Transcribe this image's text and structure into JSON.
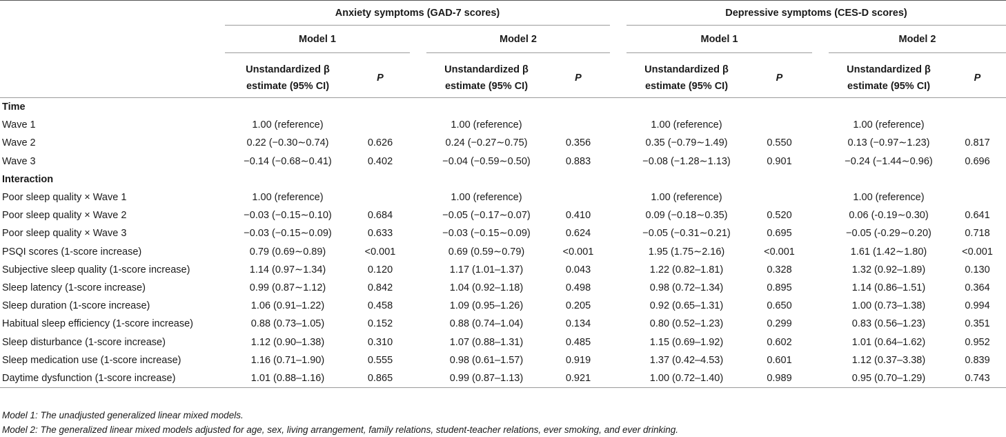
{
  "groups": [
    {
      "label": "Anxiety symptoms (GAD-7 scores)"
    },
    {
      "label": "Depressive symptoms (CES-D scores)"
    }
  ],
  "models": [
    "Model 1",
    "Model 2",
    "Model 1",
    "Model 2"
  ],
  "col_header": {
    "estimate_line1": "Unstandardized β",
    "estimate_line2": "estimate (95% CI)",
    "p": "P"
  },
  "sections": [
    {
      "title": "Time",
      "rows": [
        {
          "label": "Wave 1",
          "cells": [
            "1.00 (reference)",
            "",
            "1.00 (reference)",
            "",
            "1.00 (reference)",
            "",
            "1.00 (reference)",
            ""
          ]
        },
        {
          "label": "Wave 2",
          "cells": [
            "0.22 (−0.30∼0.74)",
            "0.626",
            "0.24 (−0.27∼0.75)",
            "0.356",
            "0.35 (−0.79∼1.49)",
            "0.550",
            "0.13 (−0.97∼1.23)",
            "0.817"
          ]
        },
        {
          "label": "Wave 3",
          "cells": [
            "−0.14 (−0.68∼0.41)",
            "0.402",
            "−0.04 (−0.59∼0.50)",
            "0.883",
            "−0.08 (−1.28∼1.13)",
            "0.901",
            "−0.24 (−1.44∼0.96)",
            "0.696"
          ]
        }
      ]
    },
    {
      "title": "Interaction",
      "rows": [
        {
          "label": "Poor sleep quality × Wave 1",
          "cells": [
            "1.00 (reference)",
            "",
            "1.00 (reference)",
            "",
            "1.00 (reference)",
            "",
            "1.00 (reference)",
            ""
          ]
        },
        {
          "label": "Poor sleep quality × Wave 2",
          "cells": [
            "−0.03 (−0.15∼0.10)",
            "0.684",
            "−0.05 (−0.17∼0.07)",
            "0.410",
            "0.09 (−0.18∼0.35)",
            "0.520",
            "0.06 (-0.19∼0.30)",
            "0.641"
          ]
        },
        {
          "label": "Poor sleep quality × Wave 3",
          "cells": [
            "−0.03 (−0.15∼0.09)",
            "0.633",
            "−0.03 (−0.15∼0.09)",
            "0.624",
            "−0.05 (−0.31∼0.21)",
            "0.695",
            "−0.05 (-0.29∼0.20)",
            "0.718"
          ]
        },
        {
          "label": "PSQI scores (1-score increase)",
          "cells": [
            "0.79 (0.69∼0.89)",
            "<0.001",
            "0.69 (0.59∼0.79)",
            "<0.001",
            "1.95 (1.75∼2.16)",
            "<0.001",
            "1.61 (1.42∼1.80)",
            "<0.001"
          ]
        },
        {
          "label": "Subjective sleep quality (1-score increase)",
          "cells": [
            "1.14 (0.97∼1.34)",
            "0.120",
            "1.17 (1.01–1.37)",
            "0.043",
            "1.22 (0.82–1.81)",
            "0.328",
            "1.32 (0.92–1.89)",
            "0.130"
          ]
        },
        {
          "label": "Sleep latency (1-score increase)",
          "cells": [
            "0.99 (0.87∼1.12)",
            "0.842",
            "1.04 (0.92–1.18)",
            "0.498",
            "0.98 (0.72–1.34)",
            "0.895",
            "1.14 (0.86–1.51)",
            "0.364"
          ]
        },
        {
          "label": "Sleep duration (1-score increase)",
          "cells": [
            "1.06 (0.91–1.22)",
            "0.458",
            "1.09 (0.95–1.26)",
            "0.205",
            "0.92 (0.65–1.31)",
            "0.650",
            "1.00 (0.73–1.38)",
            "0.994"
          ]
        },
        {
          "label": "Habitual sleep efficiency (1-score increase)",
          "cells": [
            "0.88 (0.73–1.05)",
            "0.152",
            "0.88 (0.74–1.04)",
            "0.134",
            "0.80 (0.52–1.23)",
            "0.299",
            "0.83 (0.56–1.23)",
            "0.351"
          ]
        },
        {
          "label": "Sleep disturbance (1-score increase)",
          "cells": [
            "1.12 (0.90–1.38)",
            "0.310",
            "1.07 (0.88–1.31)",
            "0.485",
            "1.15 (0.69–1.92)",
            "0.602",
            "1.01 (0.64–1.62)",
            "0.952"
          ]
        },
        {
          "label": "Sleep medication use (1-score increase)",
          "cells": [
            "1.16 (0.71–1.90)",
            "0.555",
            "0.98 (0.61–1.57)",
            "0.919",
            "1.37 (0.42–4.53)",
            "0.601",
            "1.12 (0.37–3.38)",
            "0.839"
          ]
        },
        {
          "label": "Daytime dysfunction (1-score increase)",
          "cells": [
            "1.01 (0.88–1.16)",
            "0.865",
            "0.99 (0.87–1.13)",
            "0.921",
            "1.00 (0.72–1.40)",
            "0.989",
            "0.95 (0.70–1.29)",
            "0.743"
          ]
        }
      ]
    }
  ],
  "notes": [
    "Model 1: The unadjusted generalized linear mixed models.",
    "Model 2: The generalized linear mixed models adjusted for age, sex, living arrangement, family relations, student-teacher relations, ever smoking, and ever drinking."
  ]
}
